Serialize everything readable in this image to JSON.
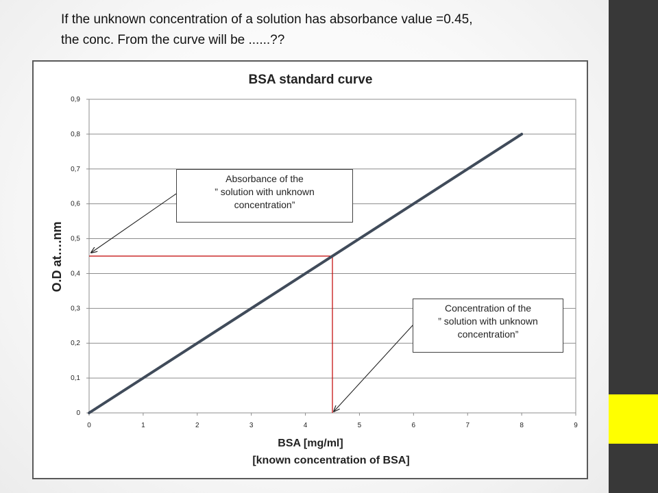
{
  "slide": {
    "question": "If the unknown concentration of a solution has absorbance value =0.45,\nthe conc. From the curve will be ......??",
    "colors": {
      "sidebar": "#383838",
      "accent": "#ffff00"
    }
  },
  "chart_data": {
    "type": "line",
    "title": "BSA standard curve",
    "xlabel": "BSA [mg/ml]",
    "xlabel2": "[known concentration of BSA]",
    "ylabel": "O.D at….nm",
    "xlim": [
      0,
      9
    ],
    "ylim": [
      0,
      0.9
    ],
    "x_ticks": [
      "0",
      "1",
      "2",
      "3",
      "4",
      "5",
      "6",
      "7",
      "8",
      "9"
    ],
    "y_ticks": [
      "0",
      "0,1",
      "0,2",
      "0,3",
      "0,4",
      "0,5",
      "0,6",
      "0,7",
      "0,8",
      "0,9"
    ],
    "grid": "horizontal",
    "series": [
      {
        "x": [
          0,
          8
        ],
        "y": [
          0,
          0.8
        ],
        "color": "#404b5a"
      }
    ],
    "guide": {
      "x": 4.5,
      "y": 0.45,
      "color": "#c00000"
    },
    "annotations": [
      {
        "text": "Absorbance of the\n” solution with unknown\nconcentration”",
        "points_to": "y-axis at 0.45"
      },
      {
        "text": "Concentration of the\n” solution with unknown\nconcentration”",
        "points_to": "x-axis at 4.5"
      }
    ]
  }
}
